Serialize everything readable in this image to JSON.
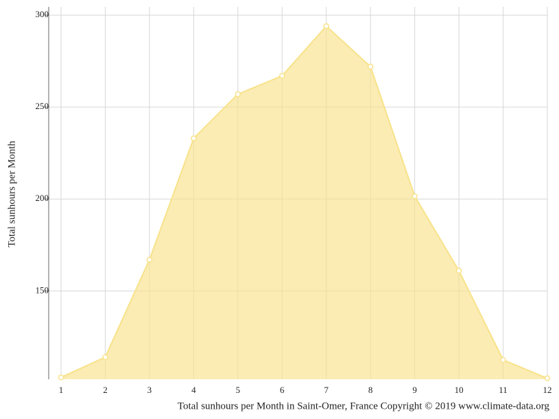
{
  "chart_data": {
    "type": "area",
    "y_label": "Total sunhours per Month",
    "caption": "Total sunhours per Month in Saint-Omer, France Copyright © 2019 www.climate-data.org",
    "x": [
      1,
      2,
      3,
      4,
      5,
      6,
      7,
      8,
      9,
      10,
      11,
      12
    ],
    "series": [
      {
        "name": "Total sunhours per Month",
        "color": "#f8e28a",
        "values": [
          103,
          114,
          167,
          233,
          257,
          267,
          294,
          272,
          201.5,
          161,
          112.5,
          102.5
        ]
      }
    ],
    "xlim": [
      1,
      12
    ],
    "xticks": [
      1,
      2,
      3,
      4,
      5,
      6,
      7,
      8,
      9,
      10,
      11,
      12
    ],
    "ylim": [
      102,
      304.5
    ],
    "yticks": [
      150,
      200,
      250,
      300
    ],
    "grid": true
  }
}
